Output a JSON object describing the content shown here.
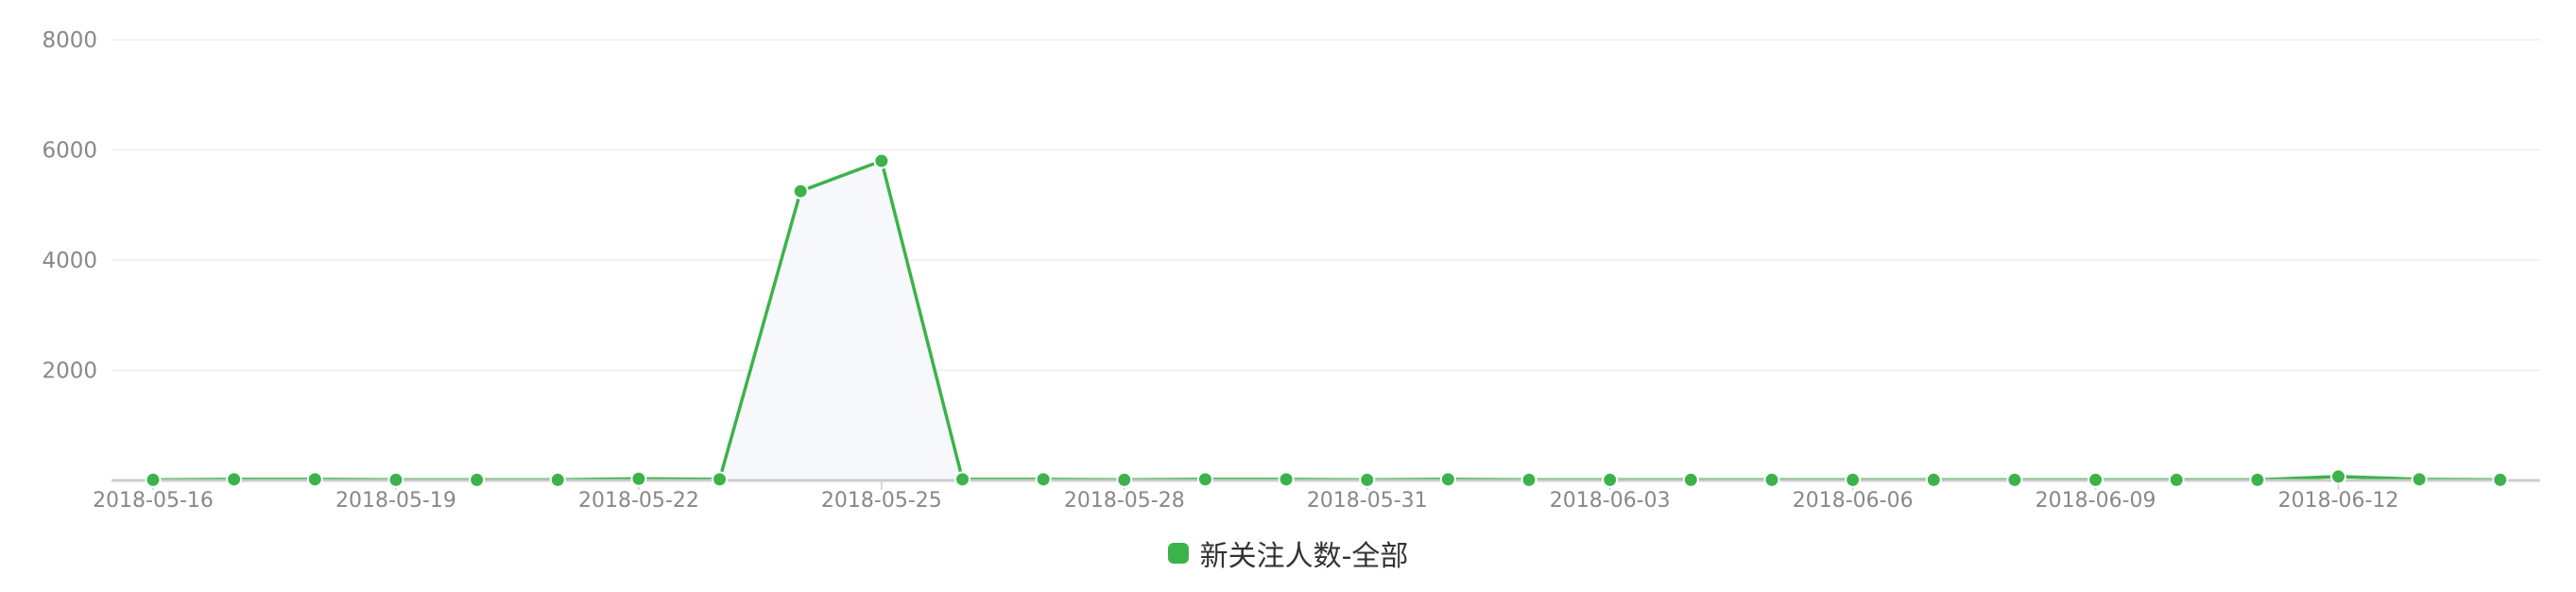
{
  "chart_data": {
    "type": "area",
    "x": [
      "2018-05-16",
      "2018-05-17",
      "2018-05-18",
      "2018-05-19",
      "2018-05-20",
      "2018-05-21",
      "2018-05-22",
      "2018-05-23",
      "2018-05-24",
      "2018-05-25",
      "2018-05-26",
      "2018-05-27",
      "2018-05-28",
      "2018-05-29",
      "2018-05-30",
      "2018-05-31",
      "2018-06-01",
      "2018-06-02",
      "2018-06-03",
      "2018-06-04",
      "2018-06-05",
      "2018-06-06",
      "2018-06-07",
      "2018-06-08",
      "2018-06-09",
      "2018-06-10",
      "2018-06-11",
      "2018-06-12",
      "2018-06-13",
      "2018-06-14"
    ],
    "xtick_labels": [
      "2018-05-16",
      "2018-05-19",
      "2018-05-22",
      "2018-05-25",
      "2018-05-28",
      "2018-05-31",
      "2018-06-03",
      "2018-06-06",
      "2018-06-09",
      "2018-06-12"
    ],
    "series": [
      {
        "name": "新关注人数-全部",
        "color": "#3cb34a",
        "values": [
          10,
          20,
          20,
          10,
          10,
          10,
          30,
          20,
          5250,
          5800,
          20,
          20,
          10,
          20,
          20,
          10,
          20,
          10,
          10,
          10,
          10,
          10,
          10,
          10,
          10,
          10,
          10,
          70,
          20,
          10
        ]
      }
    ],
    "yticks": [
      2000,
      4000,
      6000,
      8000
    ],
    "ylim": [
      0,
      8000
    ],
    "grid": true,
    "legend_position": "bottom-center",
    "area_fill_color": "#f6f8fb",
    "axis_color": "#cccccc",
    "grid_color": "#eeeeee"
  }
}
